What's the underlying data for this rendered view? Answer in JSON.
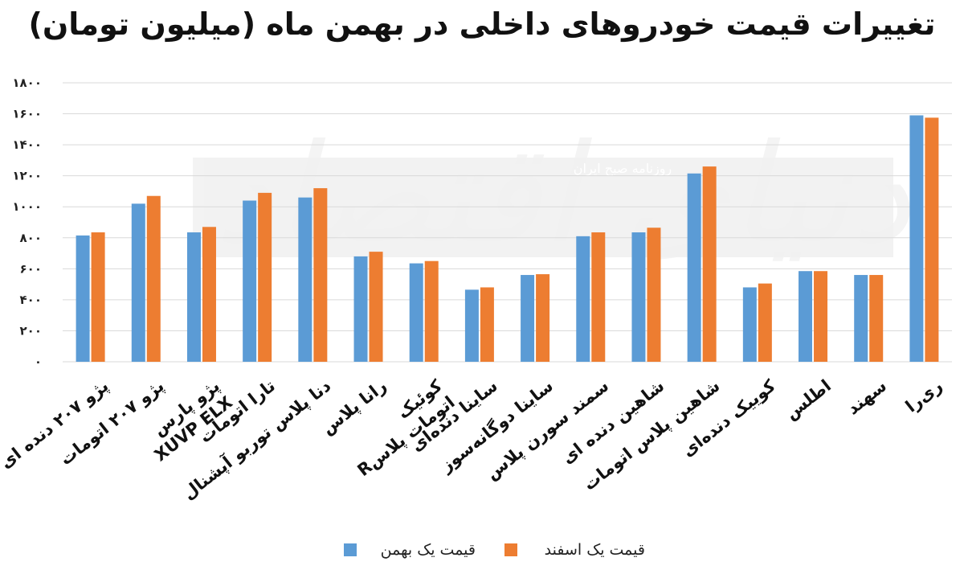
{
  "chart_data": {
    "type": "bar",
    "title": "تغییرات قیمت خودروهای داخلی در بهمن ماه (میلیون تومان)",
    "xlabel": "",
    "ylabel": "",
    "ylim": [
      0,
      1800
    ],
    "yticks": [
      0,
      200,
      400,
      600,
      800,
      1000,
      1200,
      1400,
      1600,
      1800
    ],
    "ytick_labels": [
      "۰",
      "۲۰۰",
      "۴۰۰",
      "۶۰۰",
      "۸۰۰",
      "۱۰۰۰",
      "۱۲۰۰",
      "۱۴۰۰",
      "۱۶۰۰",
      "۱۸۰۰"
    ],
    "grid": true,
    "legend_position": "bottom",
    "categories": [
      [
        "پژو ۲۰۷ دنده ای"
      ],
      [
        "پژو ۲۰۷ اتومات"
      ],
      [
        "پژو پارس",
        "XUVP ELX"
      ],
      [
        "تارا اتومات"
      ],
      [
        "دنا پلاس توربو آپشنال"
      ],
      [
        "رانا پلاس"
      ],
      [
        "کوئیک",
        "Rاتومات پلاس"
      ],
      [
        "ساینا دنده‌ای"
      ],
      [
        "ساینا دوگانه‌سوز"
      ],
      [
        "سمند سورن پلاس"
      ],
      [
        "شاهین دنده ای"
      ],
      [
        "شاهین پلاس اتومات"
      ],
      [
        "کوییک دنده‌ای"
      ],
      [
        "اطلس"
      ],
      [
        "سهند"
      ],
      [
        "ری‌را"
      ]
    ],
    "series": [
      {
        "name": "قیمت یک بهمن",
        "color": "#5B9BD5",
        "values": [
          815,
          1020,
          835,
          1040,
          1060,
          680,
          635,
          465,
          560,
          810,
          835,
          1215,
          480,
          585,
          560,
          1590
        ]
      },
      {
        "name": "قیمت یک اسفند",
        "color": "#ED7D31",
        "values": [
          835,
          1070,
          870,
          1090,
          1120,
          710,
          650,
          480,
          565,
          835,
          865,
          1260,
          505,
          585,
          560,
          1575
        ]
      }
    ]
  },
  "watermark": {
    "brand": "دنیای اقتصاد",
    "caption": "روزنامه صبح ایران"
  },
  "colors": {
    "grid": "#d9d9d9",
    "watermark_band": "#e8e8e8"
  }
}
